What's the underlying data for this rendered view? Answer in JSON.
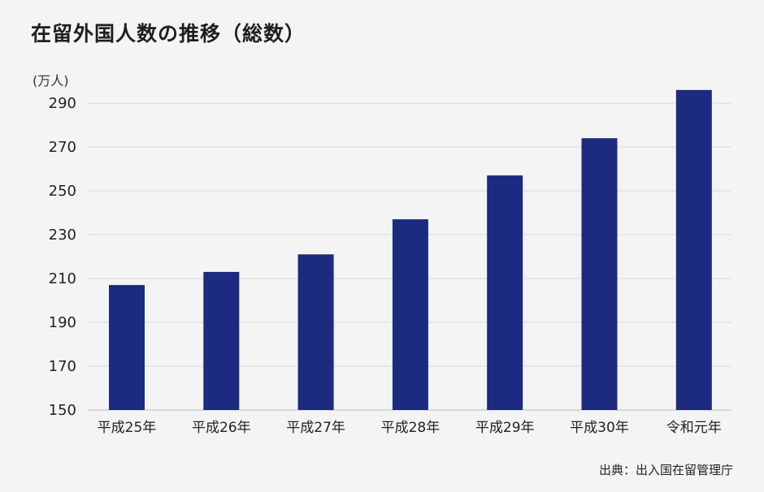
{
  "chart_data": {
    "type": "bar",
    "title": "在留外国人数の推移（総数）",
    "ylabel": "(万人)",
    "xlabel": "",
    "categories": [
      "平成25年",
      "平成26年",
      "平成27年",
      "平成28年",
      "平成29年",
      "平成30年",
      "令和元年"
    ],
    "values": [
      207,
      213,
      221,
      237,
      257,
      274,
      296
    ],
    "ylim": [
      150,
      300
    ],
    "yticks": [
      150,
      170,
      190,
      210,
      230,
      250,
      270,
      290
    ],
    "grid": true,
    "bar_color": "#1c2a7f",
    "grid_color": "#d9d9d9",
    "source": "出典：出入国在留管理庁"
  }
}
